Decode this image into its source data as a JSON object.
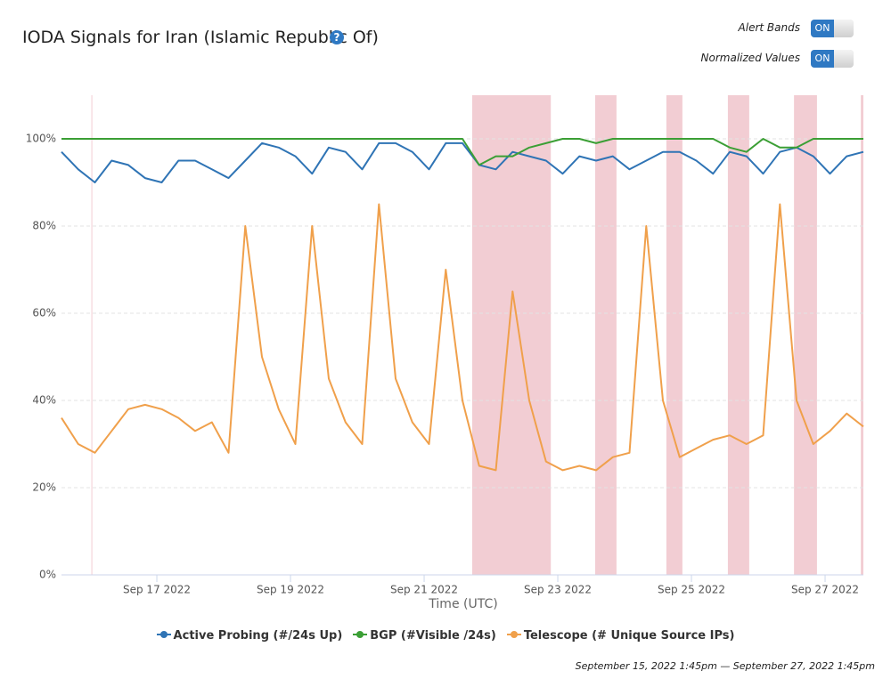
{
  "header": {
    "title": "IODA Signals for Iran (Islamic Republic Of)"
  },
  "controls": [
    {
      "label": "Alert Bands",
      "state": "ON"
    },
    {
      "label": "Normalized Values",
      "state": "ON"
    }
  ],
  "chart_data": {
    "type": "line",
    "x_label": "Time (UTC)",
    "x": [
      "2022-09-15T13:45",
      "2022-09-15T19:45",
      "2022-09-16T01:45",
      "2022-09-16T07:45",
      "2022-09-16T13:45",
      "2022-09-16T19:45",
      "2022-09-17T01:45",
      "2022-09-17T07:45",
      "2022-09-17T13:45",
      "2022-09-17T19:45",
      "2022-09-18T01:45",
      "2022-09-18T07:45",
      "2022-09-18T13:45",
      "2022-09-18T19:45",
      "2022-09-19T01:45",
      "2022-09-19T07:45",
      "2022-09-19T13:45",
      "2022-09-19T19:45",
      "2022-09-20T01:45",
      "2022-09-20T07:45",
      "2022-09-20T13:45",
      "2022-09-20T19:45",
      "2022-09-21T01:45",
      "2022-09-21T07:45",
      "2022-09-21T13:45",
      "2022-09-21T19:45",
      "2022-09-22T01:45",
      "2022-09-22T07:45",
      "2022-09-22T13:45",
      "2022-09-22T19:45",
      "2022-09-23T01:45",
      "2022-09-23T07:45",
      "2022-09-23T13:45",
      "2022-09-23T19:45",
      "2022-09-24T01:45",
      "2022-09-24T07:45",
      "2022-09-24T13:45",
      "2022-09-24T19:45",
      "2022-09-25T01:45",
      "2022-09-25T07:45",
      "2022-09-25T13:45",
      "2022-09-25T19:45",
      "2022-09-26T01:45",
      "2022-09-26T07:45",
      "2022-09-26T13:45",
      "2022-09-26T19:45",
      "2022-09-27T01:45",
      "2022-09-27T07:45",
      "2022-09-27T13:45"
    ],
    "series": [
      {
        "name": "Active Probing (#/24s Up)",
        "color": "#2f74b5",
        "values": [
          97,
          93,
          90,
          95,
          94,
          91,
          90,
          95,
          95,
          93,
          91,
          95,
          99,
          98,
          96,
          92,
          98,
          97,
          93,
          99,
          99,
          97,
          93,
          99,
          99,
          94,
          93,
          97,
          96,
          95,
          92,
          96,
          95,
          96,
          93,
          95,
          97,
          97,
          95,
          92,
          97,
          96,
          92,
          97,
          98,
          96,
          92,
          96,
          97
        ]
      },
      {
        "name": "BGP (#Visible /24s)",
        "color": "#3b9f35",
        "values": [
          100,
          100,
          100,
          100,
          100,
          100,
          100,
          100,
          100,
          100,
          100,
          100,
          100,
          100,
          100,
          100,
          100,
          100,
          100,
          100,
          100,
          100,
          100,
          100,
          100,
          94,
          96,
          96,
          98,
          99,
          100,
          100,
          99,
          100,
          100,
          100,
          100,
          100,
          100,
          100,
          98,
          97,
          100,
          98,
          98,
          100,
          100,
          100,
          100
        ]
      },
      {
        "name": "Telescope (# Unique Source IPs)",
        "color": "#f0a04b",
        "values": [
          36,
          30,
          28,
          33,
          38,
          39,
          38,
          36,
          33,
          35,
          28,
          80,
          50,
          38,
          30,
          80,
          45,
          35,
          30,
          85,
          45,
          35,
          30,
          70,
          40,
          25,
          24,
          65,
          40,
          26,
          24,
          25,
          24,
          27,
          28,
          80,
          40,
          27,
          29,
          31,
          32,
          30,
          32,
          85,
          40,
          30,
          33,
          37,
          34
        ]
      }
    ],
    "xlim": [
      "2022-09-15T13:45",
      "2022-09-27T13:45"
    ],
    "xticks": [
      {
        "value": "2022-09-17T00:00",
        "label": "Sep 17 2022"
      },
      {
        "value": "2022-09-19T00:00",
        "label": "Sep 19 2022"
      },
      {
        "value": "2022-09-21T00:00",
        "label": "Sep 21 2022"
      },
      {
        "value": "2022-09-23T00:00",
        "label": "Sep 23 2022"
      },
      {
        "value": "2022-09-25T00:00",
        "label": "Sep 25 2022"
      },
      {
        "value": "2022-09-27T00:00",
        "label": "Sep 27 2022"
      }
    ],
    "ylim": [
      0,
      110
    ],
    "yticks": [
      {
        "value": 0,
        "label": "0%"
      },
      {
        "value": 20,
        "label": "20%"
      },
      {
        "value": 40,
        "label": "40%"
      },
      {
        "value": 60,
        "label": "60%"
      },
      {
        "value": 80,
        "label": "80%"
      },
      {
        "value": 100,
        "label": "100%"
      }
    ],
    "grid": true,
    "band_color": "#f2cdd3",
    "alert_bands": [
      [
        "2022-09-16T00:30",
        "2022-09-16T00:40"
      ],
      [
        "2022-09-21T17:15",
        "2022-09-22T21:30"
      ],
      [
        "2022-09-23T13:25",
        "2022-09-23T21:05"
      ],
      [
        "2022-09-24T15:00",
        "2022-09-24T20:45"
      ],
      [
        "2022-09-25T13:05",
        "2022-09-25T20:45"
      ],
      [
        "2022-09-26T12:50",
        "2022-09-26T21:05"
      ],
      [
        "2022-09-27T12:50",
        "2022-09-27T13:45"
      ]
    ]
  },
  "footer": {
    "range": "September 15, 2022 1:45pm — September 27, 2022 1:45pm"
  }
}
